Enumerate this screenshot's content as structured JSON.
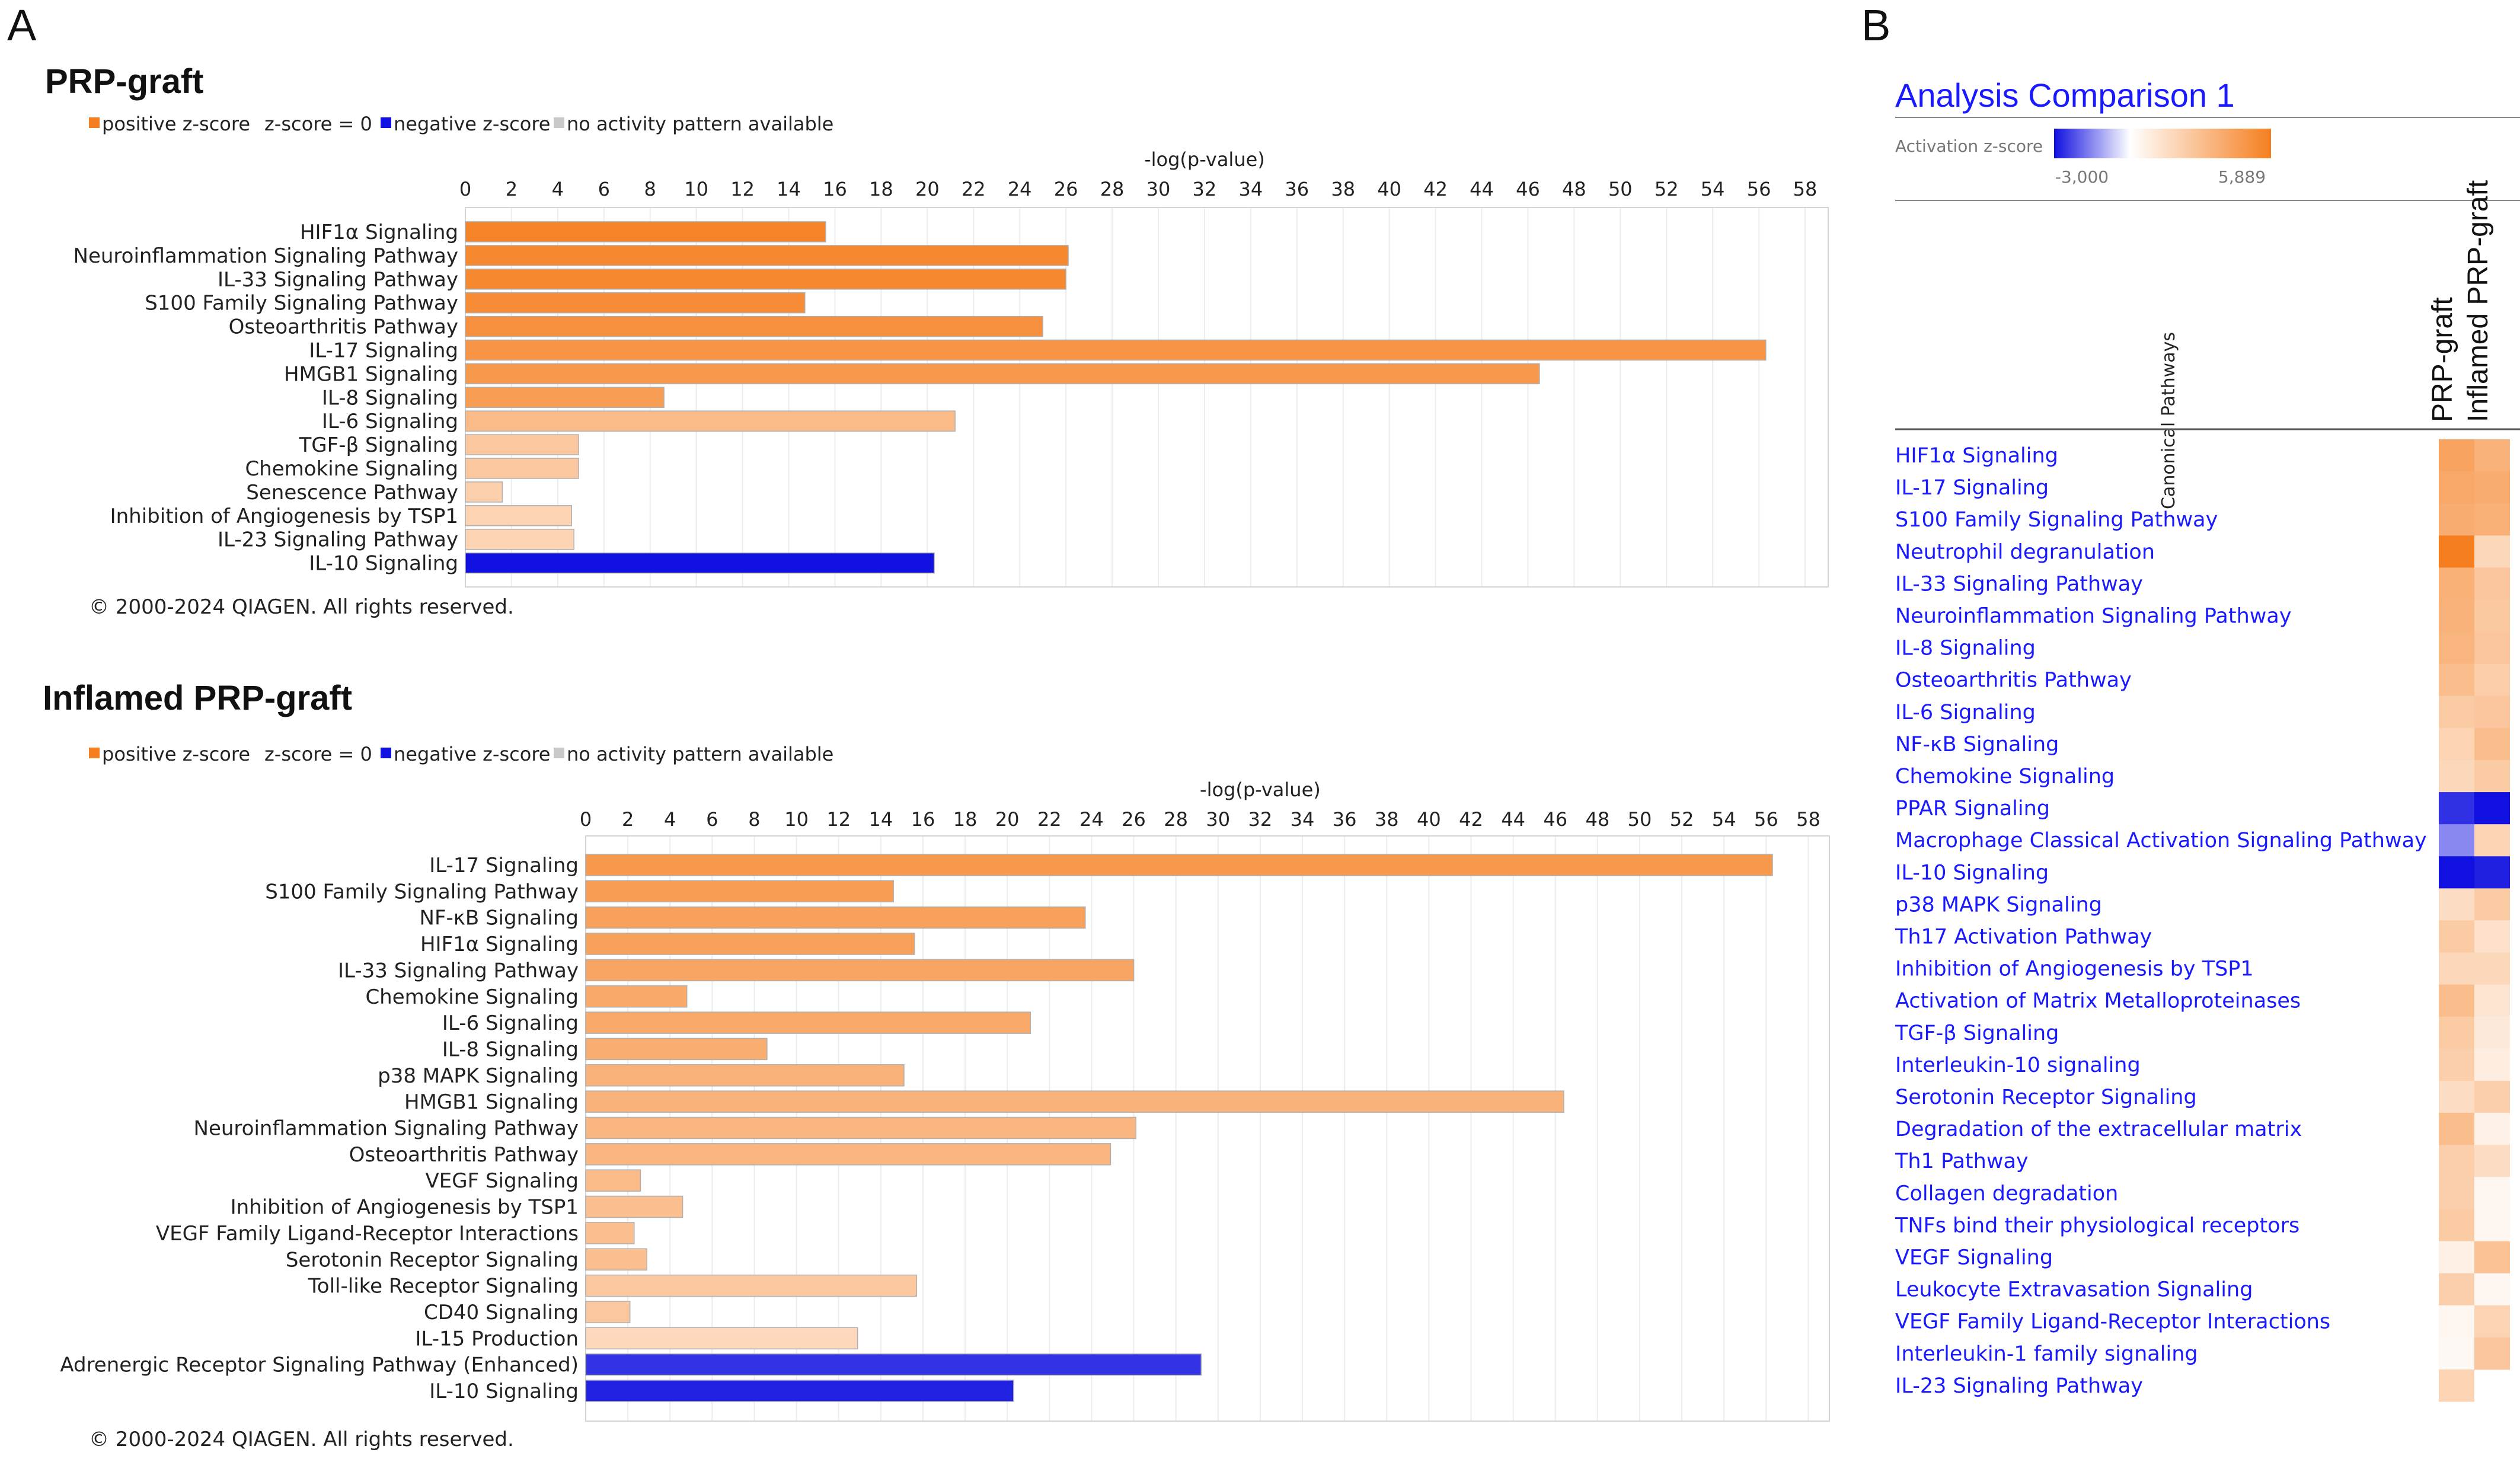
{
  "panels": {
    "a_letter": "A",
    "b_letter": "B"
  },
  "legend": {
    "positive": "positive z-score",
    "zero": "z-score = 0",
    "negative": "negative z-score",
    "na": "no activity pattern available"
  },
  "copyright": "© 2000-2024 QIAGEN. All rights reserved.",
  "colors": {
    "positive": "#f57f20",
    "negative": "#1010e0",
    "zero": "#ffffff",
    "na": "#c8c8c8",
    "link": "#1a1aff"
  },
  "chart_data": [
    {
      "type": "bar",
      "orientation": "horizontal",
      "title": "PRP-graft",
      "xlabel": "-log(p-value)",
      "xlim": [
        0,
        59
      ],
      "ticks": [
        0,
        2,
        4,
        6,
        8,
        10,
        12,
        14,
        16,
        18,
        20,
        22,
        24,
        26,
        28,
        30,
        32,
        34,
        36,
        38,
        40,
        42,
        44,
        46,
        48,
        50,
        52,
        54,
        56,
        58
      ],
      "categories": [
        "HIF1α Signaling",
        "Neuroinflammation Signaling Pathway",
        "IL-33 Signaling Pathway",
        "S100 Family Signaling Pathway",
        "Osteoarthritis Pathway",
        "IL-17 Signaling",
        "HMGB1 Signaling",
        "IL-8 Signaling",
        "IL-6 Signaling",
        "TGF-β Signaling",
        "Chemokine Signaling",
        "Senescence Pathway",
        "Inhibition of Angiogenesis by TSP1",
        "IL-23 Signaling Pathway",
        "IL-10 Signaling"
      ],
      "values": [
        15.6,
        26.1,
        26.0,
        14.7,
        25.0,
        56.3,
        46.5,
        8.6,
        21.2,
        4.9,
        4.9,
        1.6,
        4.6,
        4.7,
        20.3
      ],
      "zscores": [
        2.9,
        2.8,
        2.8,
        2.7,
        2.6,
        2.5,
        2.4,
        2.3,
        1.6,
        1.3,
        1.3,
        1.1,
        1.0,
        1.0,
        -3.0
      ]
    },
    {
      "type": "bar",
      "orientation": "horizontal",
      "title": "Inflamed PRP-graft",
      "xlabel": "-log(p-value)",
      "xlim": [
        0,
        59
      ],
      "ticks": [
        0,
        2,
        4,
        6,
        8,
        10,
        12,
        14,
        16,
        18,
        20,
        22,
        24,
        26,
        28,
        30,
        32,
        34,
        36,
        38,
        40,
        42,
        44,
        46,
        48,
        50,
        52,
        54,
        56,
        58
      ],
      "categories": [
        "IL-17 Signaling",
        "S100 Family Signaling Pathway",
        "NF-κB Signaling",
        "HIF1α Signaling",
        "IL-33 Signaling Pathway",
        "Chemokine Signaling",
        "IL-6 Signaling",
        "IL-8 Signaling",
        "p38 MAPK Signaling",
        "HMGB1 Signaling",
        "Neuroinflammation Signaling Pathway",
        "Osteoarthritis Pathway",
        "VEGF Signaling",
        "Inhibition of Angiogenesis by TSP1",
        "VEGF Family Ligand-Receptor Interactions",
        "Serotonin Receptor Signaling",
        "Toll-like Receptor Signaling",
        "CD40 Signaling",
        "IL-15 Production",
        "Adrenergic Receptor Signaling Pathway (Enhanced)",
        "IL-10 Signaling"
      ],
      "values": [
        56.3,
        14.6,
        23.7,
        15.6,
        26.0,
        4.8,
        21.1,
        8.6,
        15.1,
        46.4,
        26.1,
        24.9,
        2.6,
        4.6,
        2.3,
        2.9,
        15.7,
        2.1,
        12.9,
        29.2,
        20.3
      ],
      "zscores": [
        2.4,
        2.3,
        2.2,
        2.2,
        2.1,
        2.0,
        2.0,
        1.9,
        1.8,
        1.8,
        1.7,
        1.7,
        1.6,
        1.5,
        1.5,
        1.5,
        1.3,
        1.3,
        0.9,
        -2.6,
        -2.8
      ]
    },
    {
      "type": "heatmap",
      "title": "Analysis Comparison 1",
      "scale_label": "Activation z-score",
      "scale_min": -3.0,
      "scale_max": 5.889,
      "scale_min_label": "-3,000",
      "scale_max_label": "5,889",
      "row_header": "Canonical Pathways",
      "columns": [
        "PRP-graft",
        "Inflamed PRP-graft"
      ],
      "rows": [
        "HIF1α Signaling",
        "IL-17 Signaling",
        "S100 Family Signaling Pathway",
        "Neutrophil degranulation",
        "IL-33 Signaling Pathway",
        "Neuroinflammation Signaling Pathway",
        "IL-8 Signaling",
        "Osteoarthritis Pathway",
        "IL-6 Signaling",
        "NF-κB Signaling",
        "Chemokine Signaling",
        "PPAR Signaling",
        "Macrophage Classical Activation Signaling Pathway",
        "IL-10 Signaling",
        "p38 MAPK Signaling",
        "Th17 Activation Pathway",
        "Inhibition of Angiogenesis by TSP1",
        "Activation of Matrix Metalloproteinases",
        "TGF-β Signaling",
        "Interleukin-10 signaling",
        "Serotonin Receptor Signaling",
        "Degradation of the extracellular matrix",
        "Th1 Pathway",
        "Collagen degradation",
        "TNFs bind their physiological receptors",
        "VEGF Signaling",
        "Leukocyte Extravasation Signaling",
        "VEGF Family Ligand-Receptor Interactions",
        "Interleukin-1 family signaling",
        "IL-23 Signaling Pathway"
      ],
      "values": [
        [
          4.2,
          3.5
        ],
        [
          4.0,
          3.8
        ],
        [
          3.8,
          3.6
        ],
        [
          5.9,
          1.8
        ],
        [
          3.6,
          2.6
        ],
        [
          3.5,
          2.5
        ],
        [
          3.4,
          2.6
        ],
        [
          3.0,
          2.3
        ],
        [
          2.4,
          2.6
        ],
        [
          2.0,
          3.0
        ],
        [
          1.8,
          2.4
        ],
        [
          -2.6,
          -3.0
        ],
        [
          -1.5,
          2.0
        ],
        [
          -3.0,
          -2.8
        ],
        [
          1.6,
          2.4
        ],
        [
          2.4,
          1.4
        ],
        [
          1.8,
          1.8
        ],
        [
          3.0,
          1.2
        ],
        [
          2.4,
          1.0
        ],
        [
          2.2,
          0.8
        ],
        [
          1.6,
          2.2
        ],
        [
          3.0,
          0.6
        ],
        [
          2.2,
          1.6
        ],
        [
          2.2,
          0.4
        ],
        [
          2.4,
          0.4
        ],
        [
          0.7,
          2.8
        ],
        [
          2.2,
          0.4
        ],
        [
          0.4,
          2.0
        ],
        [
          0.3,
          2.6
        ],
        [
          2.0,
          null
        ]
      ]
    }
  ]
}
